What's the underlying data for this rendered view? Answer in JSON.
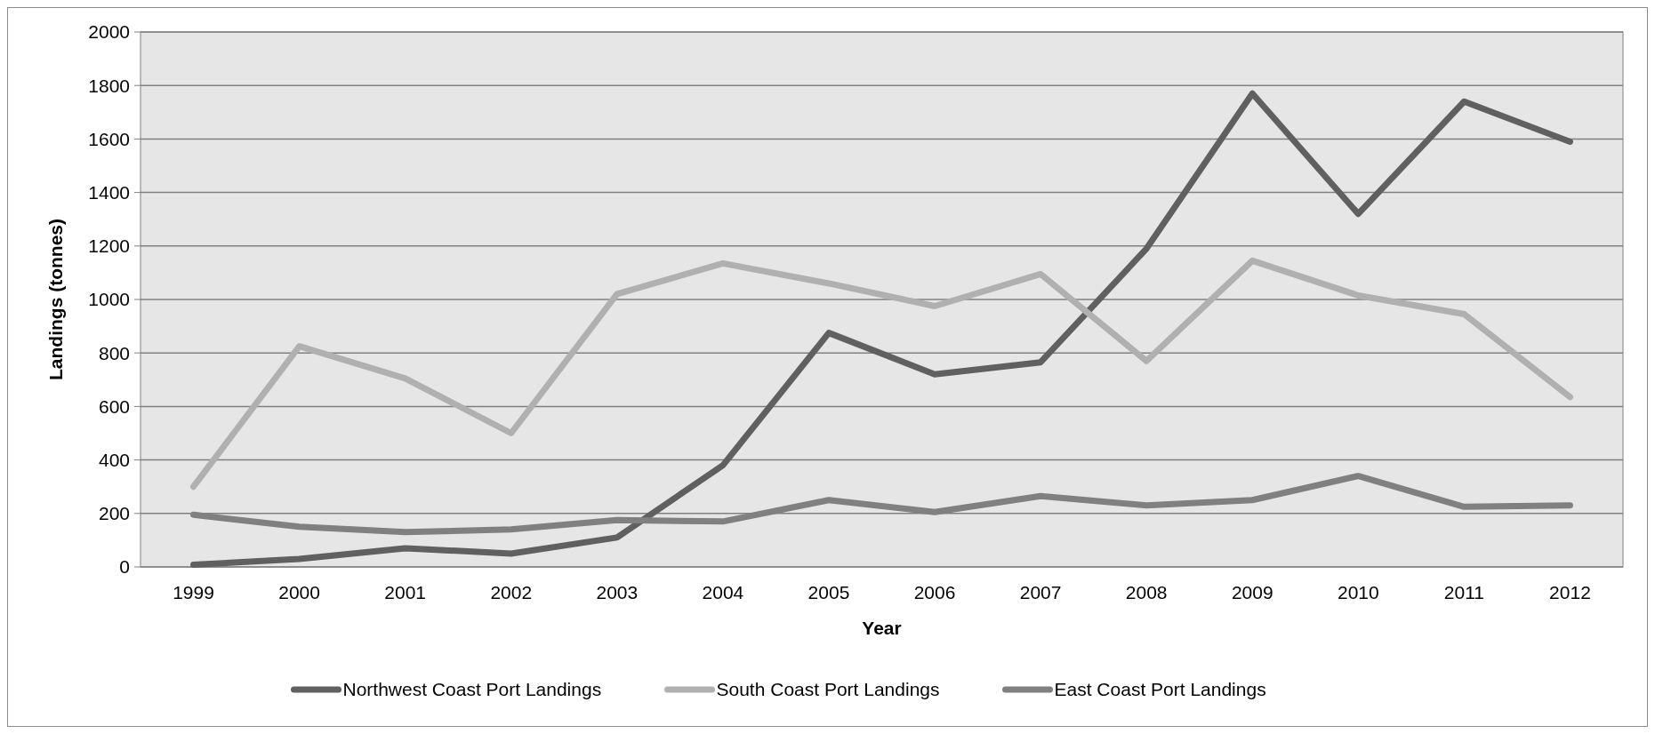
{
  "chart_data": {
    "type": "line",
    "xlabel": "Year",
    "ylabel": "Landings (tonnes)",
    "categories": [
      "1999",
      "2000",
      "2001",
      "2002",
      "2003",
      "2004",
      "2005",
      "2006",
      "2007",
      "2008",
      "2009",
      "2010",
      "2011",
      "2012"
    ],
    "series": [
      {
        "name": "Northwest Coast Port Landings",
        "color": "#606060",
        "values": [
          8,
          30,
          70,
          50,
          110,
          380,
          875,
          720,
          765,
          1190,
          1770,
          1320,
          1740,
          1590
        ]
      },
      {
        "name": "South Coast Port Landings",
        "color": "#b0b0b0",
        "values": [
          300,
          825,
          705,
          500,
          1020,
          1135,
          1060,
          975,
          1095,
          770,
          1145,
          1015,
          945,
          635
        ]
      },
      {
        "name": "East Coast Port Landings",
        "color": "#808080",
        "values": [
          195,
          150,
          130,
          140,
          175,
          170,
          250,
          205,
          265,
          230,
          250,
          340,
          225,
          230
        ]
      }
    ],
    "ylim": [
      0,
      2000
    ],
    "yticks": [
      0,
      200,
      400,
      600,
      800,
      1000,
      1200,
      1400,
      1600,
      1800,
      2000
    ],
    "grid": "y",
    "legend": "bottom",
    "marker": "none",
    "line_style": "solid"
  }
}
